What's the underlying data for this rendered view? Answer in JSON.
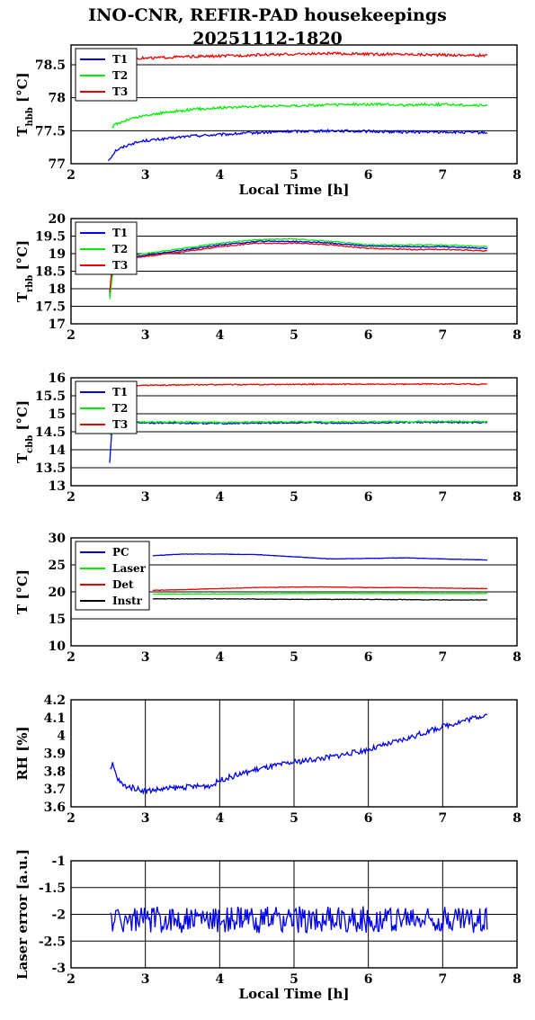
{
  "page": {
    "title_line1": "INO-CNR, REFIR-PAD housekeepings",
    "title_line2": "20251112-1820"
  },
  "colors": {
    "blue": "#0000ee",
    "green": "#00ee00",
    "red": "#ee0000",
    "black": "#000000"
  },
  "chart_data": [
    {
      "type": "line",
      "ylabel": "T",
      "ylabel_sub": "hbb",
      "ylabel_unit": " [°C]",
      "xlabel": "Local Time [h]",
      "xlim": [
        2,
        8
      ],
      "ylim": [
        77,
        78.8
      ],
      "xticks": [
        "2",
        "3",
        "4",
        "5",
        "6",
        "7",
        "8"
      ],
      "yticks": [
        77,
        77.5,
        78,
        78.5
      ],
      "ytick_labels": [
        "77",
        "77.5",
        "78",
        "78.5"
      ],
      "grid": "horizontal",
      "legend": "top-left",
      "series": [
        {
          "name": "T1",
          "color": "#0000ee",
          "x": [
            2.5,
            2.55,
            2.6,
            2.8,
            3.0,
            3.3,
            3.6,
            4.0,
            4.5,
            5.0,
            5.5,
            6.0,
            6.5,
            7.0,
            7.6
          ],
          "y": [
            77.05,
            77.12,
            77.2,
            77.3,
            77.35,
            77.38,
            77.42,
            77.44,
            77.47,
            77.49,
            77.5,
            77.49,
            77.48,
            77.48,
            77.47
          ],
          "noise": 0.02
        },
        {
          "name": "T2",
          "color": "#00ee00",
          "x": [
            2.55,
            2.6,
            2.8,
            3.0,
            3.3,
            3.6,
            4.0,
            4.5,
            5.0,
            5.5,
            6.0,
            6.5,
            7.0,
            7.6
          ],
          "y": [
            77.55,
            77.6,
            77.68,
            77.73,
            77.78,
            77.82,
            77.85,
            77.87,
            77.88,
            77.89,
            77.9,
            77.89,
            77.9,
            77.88
          ],
          "noise": 0.02
        },
        {
          "name": "T3",
          "color": "#ee0000",
          "x": [
            2.85,
            3.0,
            3.5,
            4.0,
            4.5,
            5.0,
            5.5,
            6.0,
            6.5,
            7.0,
            7.6
          ],
          "y": [
            78.6,
            78.6,
            78.62,
            78.63,
            78.65,
            78.66,
            78.67,
            78.66,
            78.66,
            78.65,
            78.64
          ],
          "noise": 0.02
        }
      ]
    },
    {
      "type": "line",
      "ylabel": "T",
      "ylabel_sub": "rbb",
      "ylabel_unit": " [°C]",
      "xlabel": "",
      "xlim": [
        2,
        8
      ],
      "ylim": [
        17,
        20
      ],
      "xticks": [
        "2",
        "3",
        "4",
        "5",
        "6",
        "7",
        "8"
      ],
      "yticks": [
        17,
        17.5,
        18,
        18.5,
        19,
        19.5,
        20
      ],
      "ytick_labels": [
        "17",
        "17.5",
        "18",
        "18.5",
        "19",
        "19.5",
        "20"
      ],
      "grid": "horizontal",
      "legend": "top-left",
      "series": [
        {
          "name": "T1",
          "color": "#0000ee",
          "x": [
            2.52,
            2.55,
            2.6,
            3.0,
            3.5,
            4.0,
            4.5,
            5.0,
            5.5,
            6.0,
            6.5,
            7.0,
            7.6
          ],
          "y": [
            17.8,
            18.5,
            18.85,
            18.95,
            19.1,
            19.25,
            19.35,
            19.35,
            19.3,
            19.22,
            19.2,
            19.2,
            19.15
          ],
          "noise": 0.015
        },
        {
          "name": "T2",
          "color": "#00ee00",
          "x": [
            2.52,
            2.55,
            2.6,
            3.0,
            3.5,
            4.0,
            4.5,
            5.0,
            5.5,
            6.0,
            6.5,
            7.0,
            7.6
          ],
          "y": [
            17.7,
            18.3,
            18.9,
            19.0,
            19.15,
            19.3,
            19.4,
            19.42,
            19.35,
            19.25,
            19.25,
            19.25,
            19.2
          ],
          "noise": 0.015
        },
        {
          "name": "T3",
          "color": "#ee0000",
          "x": [
            2.52,
            2.55,
            2.6,
            3.0,
            3.5,
            4.0,
            4.5,
            5.0,
            5.5,
            6.0,
            6.5,
            7.0,
            7.6
          ],
          "y": [
            17.9,
            18.6,
            18.85,
            18.92,
            19.05,
            19.2,
            19.3,
            19.3,
            19.25,
            19.15,
            19.12,
            19.12,
            19.08
          ],
          "noise": 0.015
        }
      ]
    },
    {
      "type": "line",
      "ylabel": "T",
      "ylabel_sub": "cbb",
      "ylabel_unit": " [°C]",
      "xlabel": "",
      "xlim": [
        2,
        8
      ],
      "ylim": [
        13,
        16
      ],
      "xticks": [
        "2",
        "3",
        "4",
        "5",
        "6",
        "7",
        "8"
      ],
      "yticks": [
        13,
        13.5,
        14,
        14.5,
        15,
        15.5,
        16
      ],
      "ytick_labels": [
        "13",
        "13.5",
        "14",
        "14.5",
        "15",
        "15.5",
        "16"
      ],
      "grid": "horizontal",
      "legend": "top-left",
      "series": [
        {
          "name": "T1",
          "color": "#0000ee",
          "x": [
            2.52,
            2.54,
            2.56,
            2.6,
            3.0,
            3.5,
            4.0,
            4.5,
            5.0,
            5.5,
            6.0,
            6.5,
            7.0,
            7.6
          ],
          "y": [
            13.65,
            14.3,
            14.7,
            14.74,
            14.75,
            14.74,
            14.73,
            14.74,
            14.75,
            14.74,
            14.75,
            14.76,
            14.76,
            14.75
          ],
          "noise": 0.02
        },
        {
          "name": "T2",
          "color": "#00ee00",
          "x": [
            2.53,
            2.56,
            2.6,
            3.0,
            3.5,
            4.0,
            4.5,
            5.0,
            5.5,
            6.0,
            6.5,
            7.0,
            7.6
          ],
          "y": [
            14.4,
            14.7,
            14.76,
            14.77,
            14.77,
            14.76,
            14.77,
            14.78,
            14.77,
            14.78,
            14.78,
            14.79,
            14.78
          ],
          "noise": 0.02
        },
        {
          "name": "T3",
          "color": "#ee0000",
          "x": [
            2.85,
            3.0,
            3.5,
            4.0,
            4.5,
            5.0,
            5.5,
            6.0,
            6.5,
            7.0,
            7.6
          ],
          "y": [
            15.78,
            15.79,
            15.8,
            15.81,
            15.81,
            15.82,
            15.82,
            15.82,
            15.82,
            15.83,
            15.82
          ],
          "noise": 0.015
        }
      ]
    },
    {
      "type": "line",
      "ylabel": "T [°C]",
      "ylabel_sub": "",
      "ylabel_unit": "",
      "xlabel": "",
      "xlim": [
        2,
        8
      ],
      "ylim": [
        10,
        30
      ],
      "xticks": [
        "2",
        "3",
        "4",
        "5",
        "6",
        "7",
        "8"
      ],
      "yticks": [
        10,
        15,
        20,
        25,
        30
      ],
      "ytick_labels": [
        "10",
        "15",
        "20",
        "25",
        "30"
      ],
      "grid": "horizontal",
      "legend": "top-left",
      "series": [
        {
          "name": "PC",
          "color": "#0000ee",
          "x": [
            3.1,
            3.5,
            4.0,
            4.5,
            5.0,
            5.5,
            6.0,
            6.5,
            7.0,
            7.6
          ],
          "y": [
            26.7,
            27.0,
            27.0,
            26.9,
            26.5,
            26.1,
            26.2,
            26.3,
            26.1,
            25.9
          ],
          "noise": 0.03
        },
        {
          "name": "Laser",
          "color": "#00ee00",
          "x": [
            3.1,
            4.0,
            5.0,
            6.0,
            7.0,
            7.6
          ],
          "y": [
            19.6,
            19.6,
            19.7,
            19.7,
            19.7,
            19.7
          ],
          "noise": 0.04
        },
        {
          "name": "Det",
          "color": "#ee0000",
          "x": [
            3.1,
            3.5,
            4.0,
            4.5,
            5.0,
            5.5,
            6.0,
            6.5,
            7.0,
            7.6
          ],
          "y": [
            20.3,
            20.4,
            20.6,
            20.8,
            20.9,
            20.9,
            20.8,
            20.8,
            20.7,
            20.6
          ],
          "noise": 0.04
        },
        {
          "name": "Instr",
          "color": "#000000",
          "x": [
            3.1,
            4.0,
            5.0,
            6.0,
            7.0,
            7.6
          ],
          "y": [
            18.7,
            18.7,
            18.6,
            18.6,
            18.5,
            18.5
          ],
          "noise": 0.05
        }
      ]
    },
    {
      "type": "line",
      "ylabel": "RH [%]",
      "ylabel_sub": "",
      "ylabel_unit": "",
      "xlabel": "",
      "xlim": [
        2,
        8
      ],
      "ylim": [
        3.6,
        4.2
      ],
      "xticks": [
        "2",
        "3",
        "4",
        "5",
        "6",
        "7",
        "8"
      ],
      "yticks": [
        3.6,
        3.7,
        3.8,
        3.9,
        4,
        4.1,
        4.2
      ],
      "ytick_labels": [
        "3.6",
        "3.7",
        "3.8",
        "3.9",
        "4",
        "4.1",
        "4.2"
      ],
      "grid": "vertical",
      "legend": "none",
      "series": [
        {
          "name": "",
          "color": "#0000ee",
          "x": [
            2.53,
            2.56,
            2.62,
            2.7,
            3.0,
            3.5,
            3.9,
            4.0,
            4.5,
            5.0,
            5.5,
            6.0,
            6.5,
            7.0,
            7.6
          ],
          "y": [
            3.8,
            3.84,
            3.76,
            3.72,
            3.69,
            3.71,
            3.72,
            3.75,
            3.81,
            3.85,
            3.88,
            3.92,
            3.98,
            4.05,
            4.12
          ],
          "noise": 0.015
        }
      ]
    },
    {
      "type": "line",
      "ylabel": "Laser error [a.u.]",
      "ylabel_sub": "",
      "ylabel_unit": "",
      "xlabel": "Local Time [h]",
      "xlim": [
        2,
        8
      ],
      "ylim": [
        -3,
        -1
      ],
      "xticks": [
        "2",
        "3",
        "4",
        "5",
        "6",
        "7",
        "8"
      ],
      "yticks": [
        -3,
        -2.5,
        -2,
        -1.5,
        -1
      ],
      "ytick_labels": [
        "-3",
        "-2.5",
        "-2",
        "-1.5",
        "-1"
      ],
      "grid": "both",
      "legend": "none",
      "series": [
        {
          "name": "",
          "color": "#0000ee",
          "x": [
            2.53,
            3.0,
            4.0,
            5.0,
            6.0,
            7.0,
            7.6
          ],
          "y": [
            -2.1,
            -2.1,
            -2.1,
            -2.1,
            -2.1,
            -2.1,
            -2.1
          ],
          "noise": 0.25
        }
      ]
    }
  ]
}
